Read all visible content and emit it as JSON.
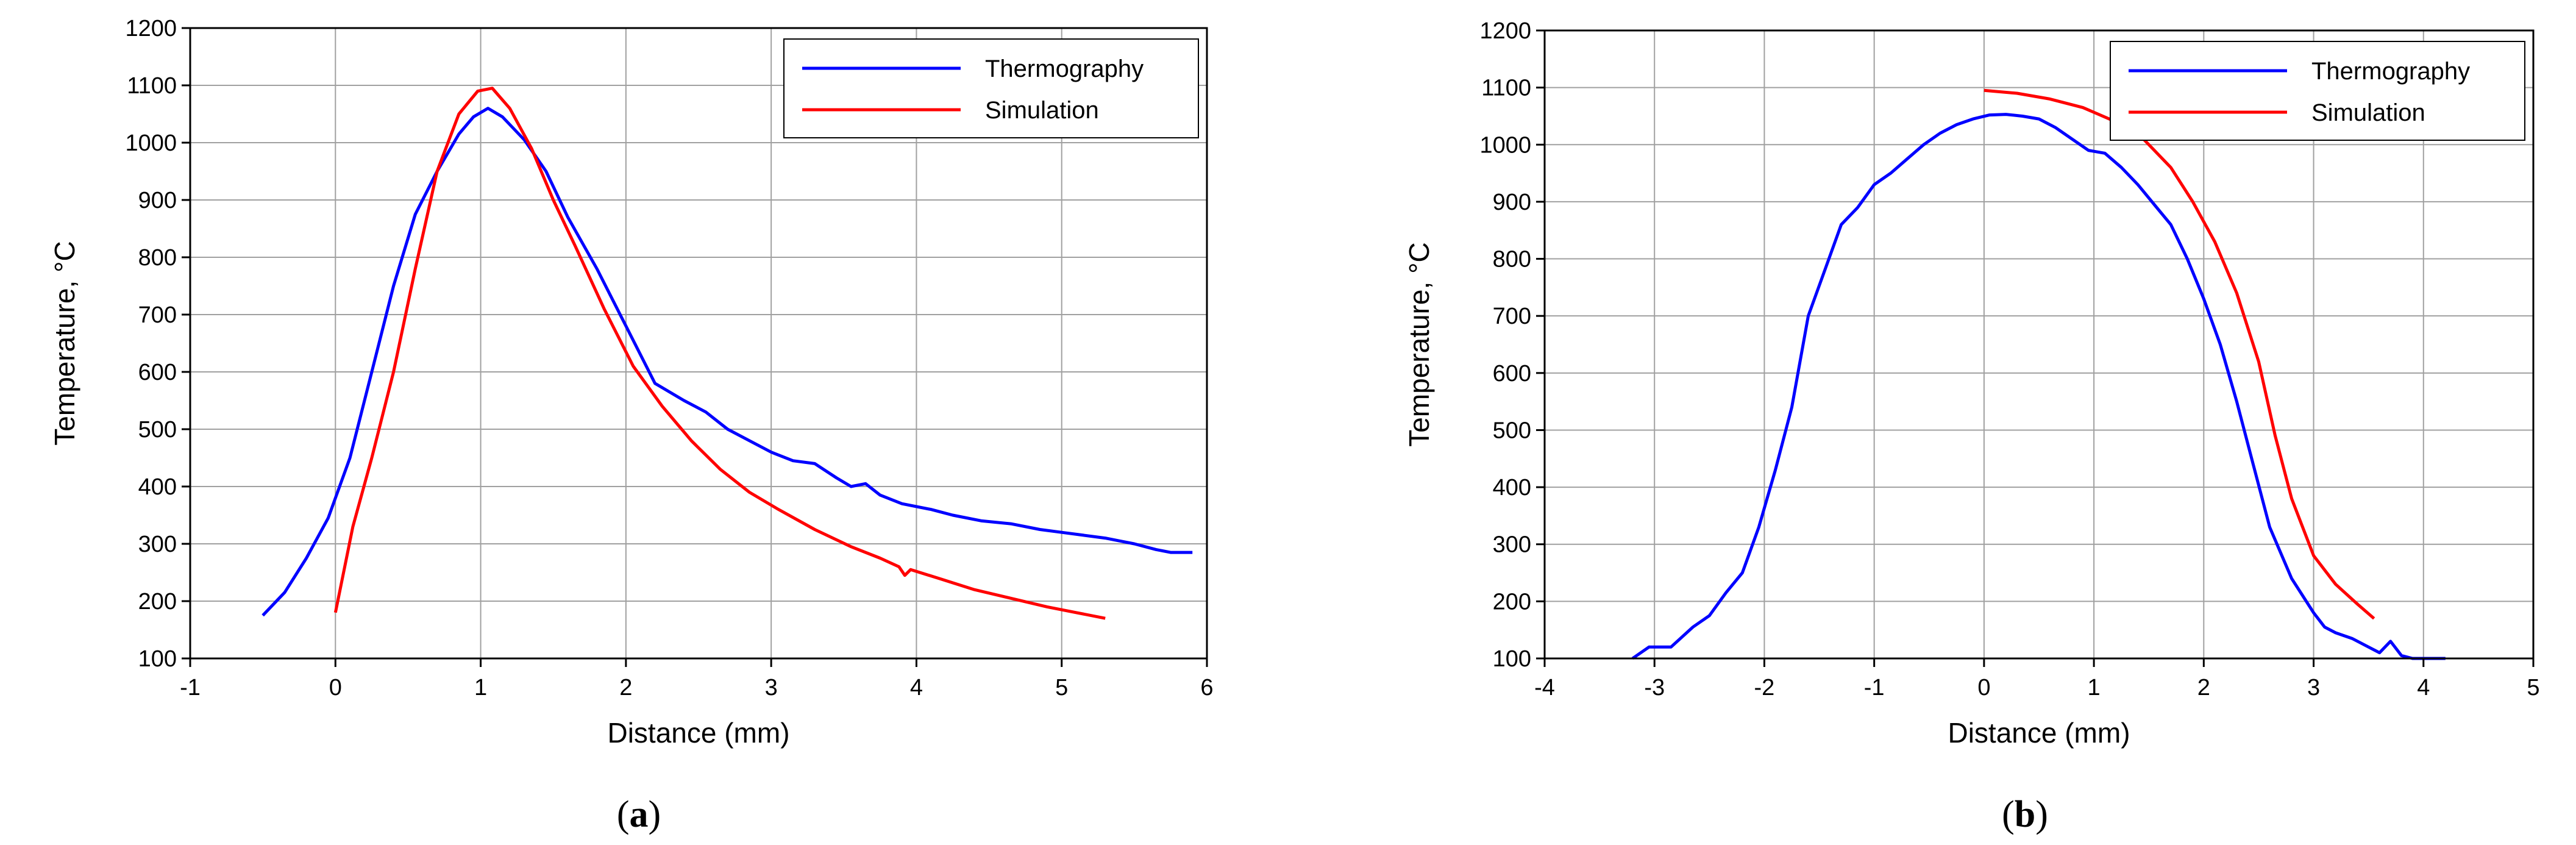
{
  "chart_data": [
    {
      "type": "line",
      "panel_label": "a",
      "xlabel": "Distance (mm)",
      "ylabel": "Temperature, °C",
      "xlim": [
        -1,
        6
      ],
      "ylim": [
        100,
        1200
      ],
      "x_ticks": [
        -1,
        0,
        1,
        2,
        3,
        4,
        5,
        6
      ],
      "y_ticks": [
        100,
        200,
        300,
        400,
        500,
        600,
        700,
        800,
        900,
        1000,
        1100,
        1200
      ],
      "grid": true,
      "legend_position": "top-right",
      "series": [
        {
          "name": "Thermography",
          "color": "#0000ff",
          "x": [
            -0.5,
            -0.35,
            -0.2,
            -0.05,
            0.1,
            0.25,
            0.4,
            0.55,
            0.7,
            0.85,
            0.95,
            1.05,
            1.15,
            1.3,
            1.45,
            1.6,
            1.8,
            2.0,
            2.2,
            2.4,
            2.55,
            2.7,
            2.85,
            3.0,
            3.15,
            3.3,
            3.45,
            3.55,
            3.65,
            3.75,
            3.9,
            4.1,
            4.25,
            4.45,
            4.65,
            4.85,
            5.0,
            5.15,
            5.3,
            5.4,
            5.5,
            5.65,
            5.75,
            5.9
          ],
          "y": [
            175,
            215,
            275,
            345,
            450,
            600,
            750,
            875,
            950,
            1015,
            1045,
            1060,
            1045,
            1005,
            950,
            870,
            780,
            680,
            580,
            550,
            530,
            500,
            480,
            460,
            445,
            440,
            415,
            400,
            405,
            385,
            370,
            360,
            350,
            340,
            335,
            325,
            320,
            315,
            310,
            305,
            300,
            290,
            285,
            285
          ]
        },
        {
          "name": "Simulation",
          "color": "#ff0000",
          "x": [
            0.0,
            0.12,
            0.25,
            0.4,
            0.55,
            0.7,
            0.85,
            0.98,
            1.08,
            1.2,
            1.35,
            1.5,
            1.65,
            1.85,
            2.05,
            2.25,
            2.45,
            2.65,
            2.85,
            3.05,
            3.3,
            3.55,
            3.75,
            3.88,
            3.92,
            3.96,
            4.15,
            4.4,
            4.65,
            4.9,
            5.1,
            5.3
          ],
          "y": [
            180,
            330,
            450,
            600,
            780,
            950,
            1050,
            1090,
            1095,
            1060,
            990,
            900,
            820,
            710,
            610,
            540,
            480,
            430,
            390,
            360,
            325,
            295,
            275,
            260,
            245,
            255,
            240,
            220,
            205,
            190,
            180,
            170
          ]
        }
      ]
    },
    {
      "type": "line",
      "panel_label": "b",
      "xlabel": "Distance (mm)",
      "ylabel": "Temperature, °C",
      "xlim": [
        -4,
        5
      ],
      "ylim": [
        100,
        1200
      ],
      "x_ticks": [
        -4,
        -3,
        -2,
        -1,
        0,
        1,
        2,
        3,
        4,
        5
      ],
      "y_ticks": [
        100,
        200,
        300,
        400,
        500,
        600,
        700,
        800,
        900,
        1000,
        1100,
        1200
      ],
      "grid": true,
      "legend_position": "top-right",
      "series": [
        {
          "name": "Thermography",
          "color": "#0000ff",
          "x": [
            -3.2,
            -3.05,
            -2.85,
            -2.65,
            -2.5,
            -2.35,
            -2.2,
            -2.05,
            -1.9,
            -1.75,
            -1.6,
            -1.45,
            -1.3,
            -1.15,
            -1.0,
            -0.85,
            -0.7,
            -0.55,
            -0.4,
            -0.25,
            -0.1,
            0.05,
            0.2,
            0.35,
            0.5,
            0.65,
            0.8,
            0.95,
            1.1,
            1.25,
            1.4,
            1.55,
            1.7,
            1.85,
            2.0,
            2.15,
            2.3,
            2.45,
            2.6,
            2.8,
            3.0,
            3.1,
            3.2,
            3.35,
            3.5,
            3.6,
            3.7,
            3.8,
            3.9,
            4.0,
            4.2
          ],
          "y": [
            100,
            120,
            120,
            155,
            175,
            215,
            250,
            330,
            430,
            540,
            700,
            780,
            860,
            890,
            930,
            950,
            975,
            1000,
            1020,
            1035,
            1045,
            1052,
            1053,
            1050,
            1045,
            1030,
            1010,
            990,
            985,
            960,
            930,
            895,
            860,
            800,
            730,
            650,
            550,
            440,
            330,
            240,
            180,
            155,
            145,
            135,
            120,
            110,
            130,
            105,
            100,
            100,
            100
          ]
        },
        {
          "name": "Simulation",
          "color": "#ff0000",
          "x": [
            0.0,
            0.3,
            0.6,
            0.9,
            1.2,
            1.45,
            1.7,
            1.9,
            2.1,
            2.3,
            2.5,
            2.65,
            2.8,
            3.0,
            3.2,
            3.4,
            3.55
          ],
          "y": [
            1095,
            1090,
            1080,
            1065,
            1040,
            1010,
            960,
            900,
            830,
            740,
            620,
            490,
            380,
            280,
            230,
            195,
            170
          ]
        }
      ]
    }
  ]
}
